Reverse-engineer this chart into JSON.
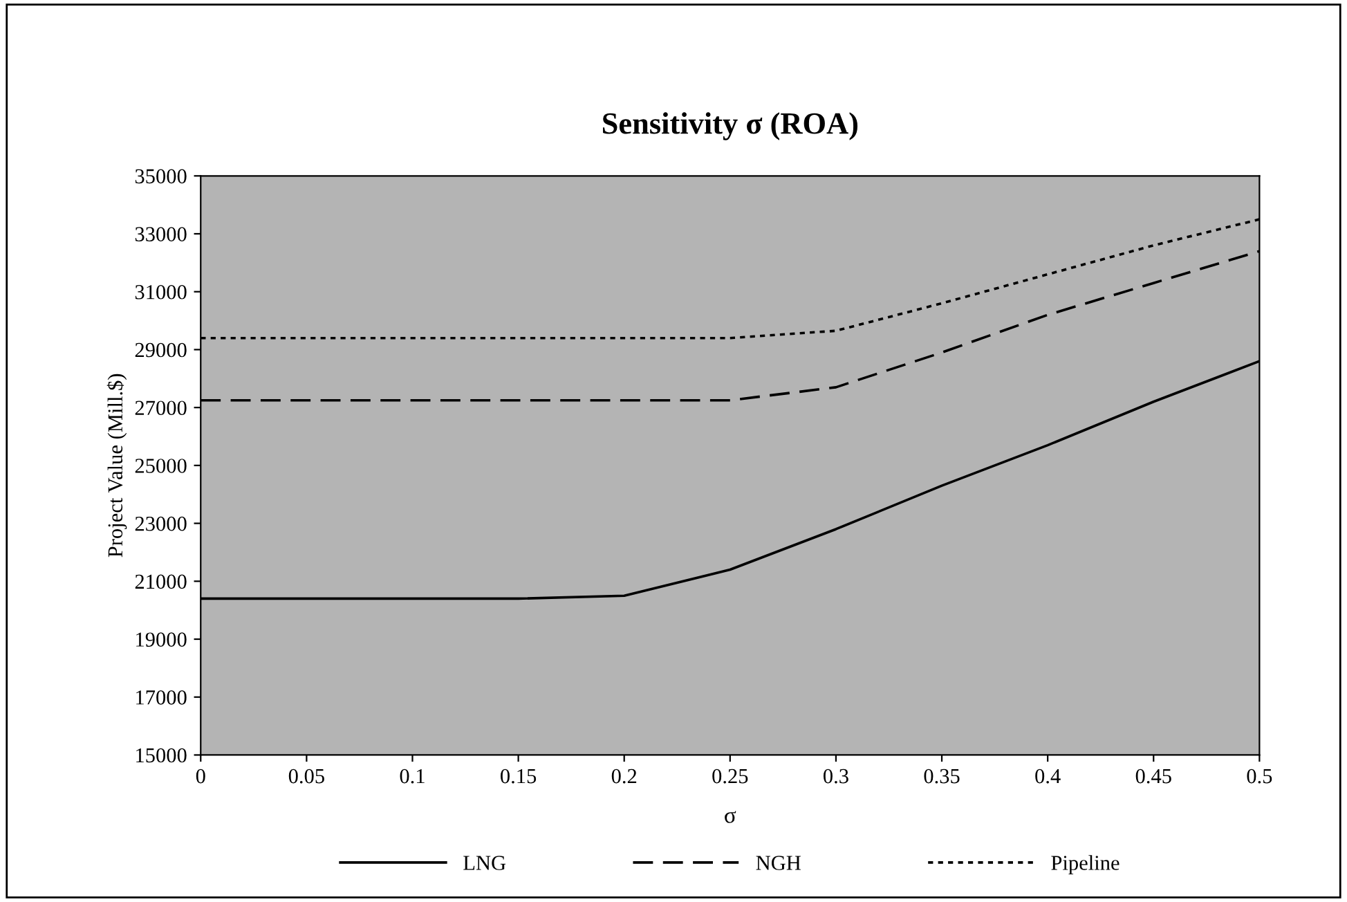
{
  "chart_data": {
    "type": "line",
    "title": "Sensitivity σ (ROA)",
    "xlabel": "σ",
    "ylabel": "Project Value (Mill.$)",
    "x": [
      0,
      0.05,
      0.1,
      0.15,
      0.2,
      0.25,
      0.3,
      0.35,
      0.4,
      0.45,
      0.5
    ],
    "series": [
      {
        "name": "LNG",
        "color": "#000000",
        "line_style": "solid",
        "values": [
          20400,
          20400,
          20400,
          20400,
          20500,
          21400,
          22800,
          24300,
          25700,
          27200,
          28600
        ]
      },
      {
        "name": "NGH",
        "color": "#000000",
        "line_style": "dashed",
        "values": [
          27250,
          27250,
          27250,
          27250,
          27250,
          27250,
          27700,
          28900,
          30200,
          31300,
          32400
        ]
      },
      {
        "name": "Pipeline",
        "color": "#000000",
        "line_style": "dotted",
        "values": [
          29400,
          29400,
          29400,
          29400,
          29400,
          29400,
          29650,
          30600,
          31600,
          32600,
          33500
        ]
      }
    ],
    "xlim": [
      0,
      0.5
    ],
    "xticks": [
      0,
      0.05,
      0.1,
      0.15,
      0.2,
      0.25,
      0.3,
      0.35,
      0.4,
      0.45,
      0.5
    ],
    "ylim": [
      15000,
      35000
    ],
    "yticks": [
      15000,
      17000,
      19000,
      21000,
      23000,
      25000,
      27000,
      29000,
      31000,
      33000,
      35000
    ],
    "grid": false,
    "legend": "bottom",
    "marker": "none"
  }
}
